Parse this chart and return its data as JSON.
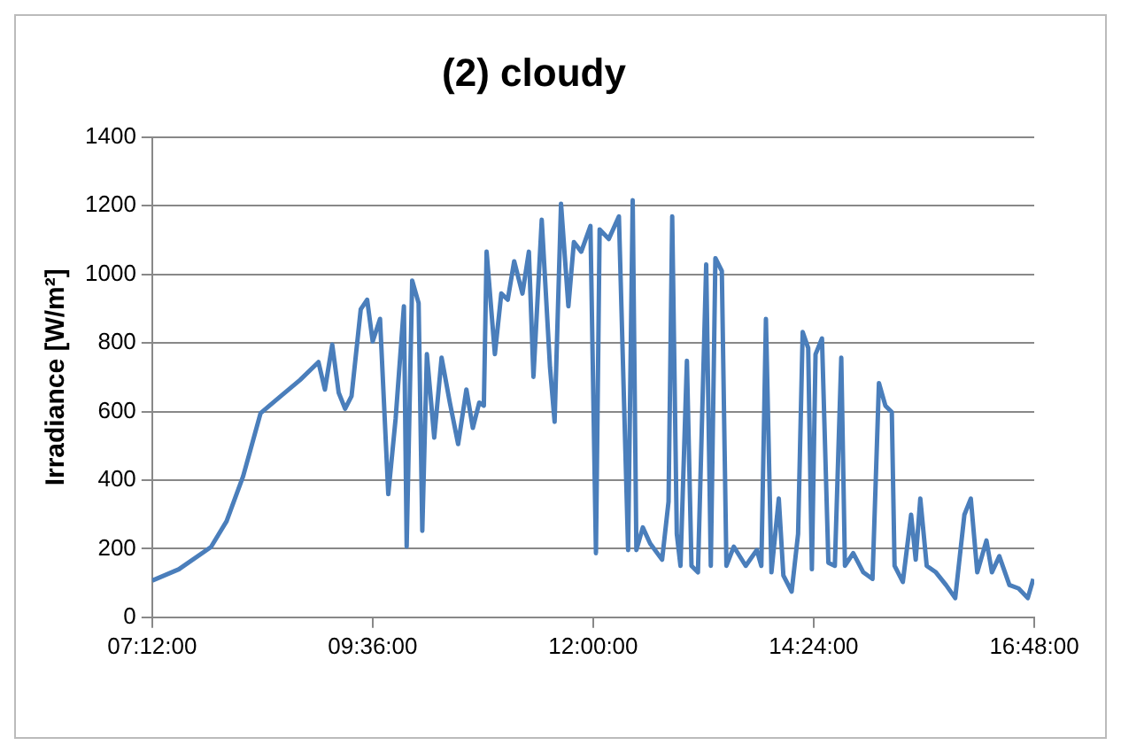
{
  "chart_data": {
    "type": "line",
    "title": "(2) cloudy",
    "ylabel": "Irradiance [W/m²]",
    "x": [
      7.2,
      7.49,
      7.84,
      8.01,
      8.19,
      8.38,
      8.6,
      8.81,
      9.01,
      9.08,
      9.16,
      9.23,
      9.3,
      9.37,
      9.47,
      9.54,
      9.6,
      9.68,
      9.77,
      9.85,
      9.94,
      9.97,
      10.03,
      10.1,
      10.14,
      10.19,
      10.27,
      10.35,
      10.44,
      10.53,
      10.62,
      10.69,
      10.76,
      10.81,
      10.84,
      10.93,
      11.0,
      11.07,
      11.14,
      11.23,
      11.3,
      11.35,
      11.44,
      11.53,
      11.58,
      11.65,
      11.73,
      11.79,
      11.87,
      11.97,
      12.03,
      12.07,
      12.17,
      12.28,
      12.38,
      12.43,
      12.47,
      12.54,
      12.62,
      12.75,
      12.82,
      12.86,
      12.91,
      12.95,
      13.02,
      13.07,
      13.14,
      13.23,
      13.28,
      13.33,
      13.4,
      13.45,
      13.53,
      13.66,
      13.78,
      13.83,
      13.88,
      13.94,
      14.02,
      14.07,
      14.16,
      14.23,
      14.28,
      14.34,
      14.38,
      14.42,
      14.49,
      14.56,
      14.63,
      14.7,
      14.74,
      14.83,
      14.94,
      15.04,
      15.11,
      15.18,
      15.25,
      15.28,
      15.37,
      15.46,
      15.51,
      15.56,
      15.63,
      15.73,
      15.84,
      15.94,
      16.04,
      16.11,
      16.18,
      16.28,
      16.34,
      16.42,
      16.53,
      16.63,
      16.73,
      16.79
    ],
    "series": [
      {
        "color": "#4a7ebb",
        "values": [
          107,
          140,
          205,
          280,
          411,
          595,
          645,
          692,
          744,
          664,
          795,
          655,
          608,
          645,
          898,
          926,
          804,
          870,
          359,
          580,
          907,
          206,
          982,
          916,
          252,
          767,
          524,
          757,
          626,
          505,
          664,
          552,
          626,
          617,
          1066,
          767,
          944,
          926,
          1038,
          944,
          1066,
          701,
          1159,
          729,
          570,
          1206,
          907,
          1094,
          1066,
          1141,
          187,
          1131,
          1103,
          1169,
          196,
          1216,
          196,
          262,
          215,
          168,
          337,
          1169,
          243,
          150,
          748,
          150,
          131,
          1029,
          150,
          1047,
          1010,
          150,
          206,
          150,
          196,
          150,
          870,
          131,
          346,
          122,
          75,
          243,
          832,
          785,
          140,
          767,
          813,
          159,
          150,
          757,
          150,
          187,
          131,
          112,
          683,
          617,
          598,
          150,
          103,
          299,
          168,
          346,
          150,
          131,
          94,
          56,
          299,
          346,
          131,
          224,
          131,
          178,
          94,
          84,
          56,
          112
        ]
      }
    ],
    "xlim": [
      7.2,
      16.8
    ],
    "xticks": [
      {
        "value": 7.2,
        "label": "07:12:00"
      },
      {
        "value": 9.6,
        "label": "09:36:00"
      },
      {
        "value": 12,
        "label": "12:00:00"
      },
      {
        "value": 14.4,
        "label": "14:24:00"
      },
      {
        "value": 16.8,
        "label": "16:48:00"
      }
    ],
    "ylim": [
      0,
      1400
    ],
    "yticks": [
      0,
      200,
      400,
      600,
      800,
      1000,
      1200,
      1400
    ],
    "grid": "y",
    "legend": false,
    "marker": "none",
    "line_style": "solid"
  }
}
